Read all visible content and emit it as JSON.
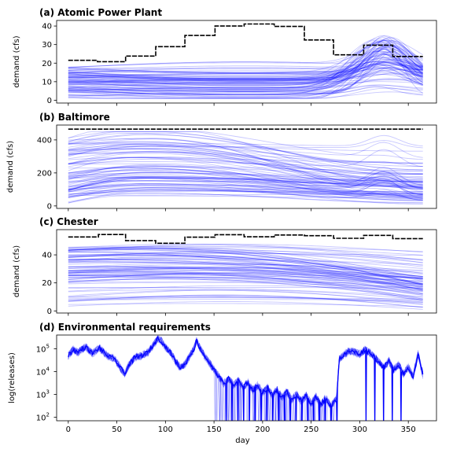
{
  "chart_data": [
    {
      "type": "line",
      "title": "(a) Atomic Power Plant",
      "xlabel": "",
      "ylabel": "demand (cfs)",
      "xlim": [
        -12,
        379
      ],
      "ylim": [
        -1.5,
        43
      ],
      "yticks": [
        0,
        10,
        20,
        30,
        40
      ],
      "xticks": [
        0,
        50,
        100,
        150,
        200,
        250,
        300,
        350
      ],
      "xtick_labels_visible": false,
      "series": [
        {
          "role": "max_demand",
          "color": "#000000",
          "style": "dashed",
          "steps": [
            {
              "x0": 0,
              "x1": 30,
              "y": 21.5
            },
            {
              "x0": 30,
              "x1": 59,
              "y": 20.8
            },
            {
              "x0": 59,
              "x1": 90,
              "y": 23.8
            },
            {
              "x0": 90,
              "x1": 120,
              "y": 28.9
            },
            {
              "x0": 120,
              "x1": 151,
              "y": 34.9
            },
            {
              "x0": 151,
              "x1": 181,
              "y": 40.0
            },
            {
              "x0": 181,
              "x1": 212,
              "y": 41.1
            },
            {
              "x0": 212,
              "x1": 243,
              "y": 39.8
            },
            {
              "x0": 243,
              "x1": 273,
              "y": 32.5
            },
            {
              "x0": 273,
              "x1": 304,
              "y": 24.5
            },
            {
              "x0": 304,
              "x1": 334,
              "y": 29.7
            },
            {
              "x0": 334,
              "x1": 365,
              "y": 23.6
            }
          ]
        },
        {
          "role": "ensemble",
          "color": "#0000ff",
          "count": 90,
          "x_range": [
            0,
            365
          ],
          "y_range": [
            1,
            35
          ],
          "bump_center_day": 325
        }
      ]
    },
    {
      "type": "line",
      "title": "(b) Baltimore",
      "xlabel": "",
      "ylabel": "demand (cfs)",
      "xlim": [
        -12,
        379
      ],
      "ylim": [
        -15,
        490
      ],
      "yticks": [
        0,
        200,
        400
      ],
      "xticks": [
        0,
        50,
        100,
        150,
        200,
        250,
        300,
        350
      ],
      "xtick_labels_visible": false,
      "series": [
        {
          "role": "max_demand",
          "color": "#000000",
          "style": "dashed",
          "steps": [
            {
              "x0": 0,
              "x1": 365,
              "y": 465
            }
          ]
        },
        {
          "role": "ensemble",
          "color": "#0000ff",
          "count": 90,
          "x_range": [
            0,
            365
          ],
          "y_range": [
            5,
            450
          ],
          "peak_day": 75
        }
      ]
    },
    {
      "type": "line",
      "title": "(c) Chester",
      "xlabel": "",
      "ylabel": "demand (cfs)",
      "xlim": [
        -12,
        379
      ],
      "ylim": [
        -1.5,
        58
      ],
      "yticks": [
        0,
        20,
        40
      ],
      "xticks": [
        0,
        50,
        100,
        150,
        200,
        250,
        300,
        350
      ],
      "xtick_labels_visible": false,
      "series": [
        {
          "role": "max_demand",
          "color": "#000000",
          "style": "dashed",
          "steps": [
            {
              "x0": 0,
              "x1": 31,
              "y": 52.8
            },
            {
              "x0": 31,
              "x1": 59,
              "y": 54.5
            },
            {
              "x0": 59,
              "x1": 90,
              "y": 50.2
            },
            {
              "x0": 90,
              "x1": 120,
              "y": 48.3
            },
            {
              "x0": 120,
              "x1": 151,
              "y": 52.6
            },
            {
              "x0": 151,
              "x1": 181,
              "y": 54.4
            },
            {
              "x0": 181,
              "x1": 212,
              "y": 52.9
            },
            {
              "x0": 212,
              "x1": 243,
              "y": 54.2
            },
            {
              "x0": 243,
              "x1": 273,
              "y": 53.7
            },
            {
              "x0": 273,
              "x1": 304,
              "y": 51.8
            },
            {
              "x0": 304,
              "x1": 334,
              "y": 53.9
            },
            {
              "x0": 334,
              "x1": 365,
              "y": 51.6
            }
          ]
        },
        {
          "role": "ensemble",
          "color": "#0000ff",
          "count": 90,
          "x_range": [
            0,
            365
          ],
          "y_range": [
            1,
            50
          ]
        }
      ]
    },
    {
      "type": "line",
      "title": "(d) Environmental requirements",
      "xlabel": "day",
      "ylabel": "log(releases)",
      "yscale": "log",
      "xlim": [
        -12,
        379
      ],
      "ylim": [
        70,
        400000
      ],
      "yticks": [
        100,
        1000,
        10000,
        100000
      ],
      "ytick_labels": [
        "10",
        "10",
        "10",
        "10"
      ],
      "ytick_exponents": [
        "2",
        "3",
        "4",
        "5"
      ],
      "xticks": [
        0,
        50,
        100,
        150,
        200,
        250,
        300,
        350
      ],
      "xtick_labels": [
        "0",
        "50",
        "100",
        "150",
        "200",
        "250",
        "300",
        "350"
      ],
      "series": [
        {
          "role": "releases",
          "color": "#0000ff",
          "keypoints": [
            [
              0,
              50000
            ],
            [
              5,
              90000
            ],
            [
              10,
              70000
            ],
            [
              18,
              120000
            ],
            [
              25,
              60000
            ],
            [
              32,
              110000
            ],
            [
              40,
              50000
            ],
            [
              48,
              35000
            ],
            [
              55,
              12000
            ],
            [
              58,
              8000
            ],
            [
              62,
              18000
            ],
            [
              68,
              40000
            ],
            [
              75,
              50000
            ],
            [
              82,
              70000
            ],
            [
              88,
              150000
            ],
            [
              92,
              280000
            ],
            [
              96,
              220000
            ],
            [
              100,
              120000
            ],
            [
              105,
              70000
            ],
            [
              110,
              30000
            ],
            [
              115,
              15000
            ],
            [
              120,
              20000
            ],
            [
              125,
              50000
            ],
            [
              129,
              90000
            ],
            [
              132,
              220000
            ],
            [
              136,
              100000
            ],
            [
              140,
              50000
            ],
            [
              145,
              25000
            ],
            [
              150,
              12000
            ],
            [
              155,
              6000
            ],
            [
              160,
              3000
            ],
            [
              165,
              5000
            ],
            [
              170,
              2500
            ],
            [
              175,
              4000
            ],
            [
              180,
              2000
            ],
            [
              185,
              3500
            ],
            [
              190,
              1500
            ],
            [
              195,
              2500
            ],
            [
              200,
              1200
            ],
            [
              205,
              2000
            ],
            [
              210,
              900
            ],
            [
              215,
              1600
            ],
            [
              220,
              700
            ],
            [
              225,
              1300
            ],
            [
              230,
              600
            ],
            [
              235,
              1000
            ],
            [
              240,
              500
            ],
            [
              245,
              900
            ],
            [
              250,
              400
            ],
            [
              255,
              800
            ],
            [
              260,
              350
            ],
            [
              265,
              700
            ],
            [
              270,
              300
            ],
            [
              276,
              600
            ],
            [
              279,
              35000
            ],
            [
              285,
              60000
            ],
            [
              290,
              80000
            ],
            [
              295,
              70000
            ],
            [
              300,
              60000
            ],
            [
              305,
              90000
            ],
            [
              310,
              70000
            ],
            [
              315,
              45000
            ],
            [
              320,
              25000
            ],
            [
              325,
              15000
            ],
            [
              330,
              30000
            ],
            [
              335,
              12000
            ],
            [
              340,
              20000
            ],
            [
              345,
              8000
            ],
            [
              350,
              15000
            ],
            [
              355,
              6000
            ],
            [
              360,
              60000
            ],
            [
              365,
              7000
            ]
          ]
        }
      ]
    }
  ]
}
